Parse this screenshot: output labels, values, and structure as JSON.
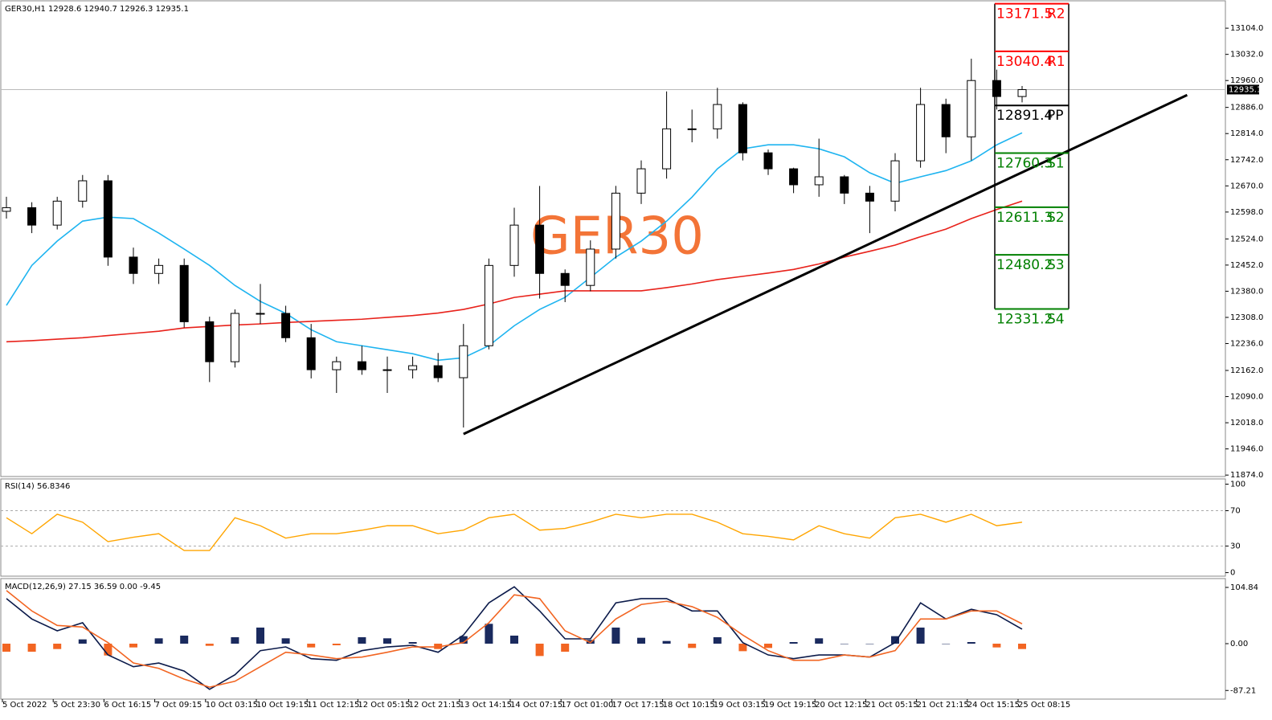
{
  "chart_data": [
    {
      "type": "candlestick",
      "title": "GER30,H1  12928.6 12940.7 12926.3 12935.1",
      "watermark": "GER30",
      "categories": [
        "5 Oct 2022",
        null,
        "5 Oct 23:30",
        null,
        "6 Oct 16:15",
        null,
        "7 Oct 09:15",
        null,
        "10 Oct 03:15",
        null,
        "10 Oct 19:15",
        null,
        "11 Oct 12:15",
        null,
        "12 Oct 05:15",
        null,
        "12 Oct 21:15",
        null,
        "13 Oct 14:15",
        null,
        "14 Oct 07:15",
        null,
        "17 Oct 01:00",
        null,
        "17 Oct 17:15",
        null,
        "18 Oct 10:15",
        null,
        "19 Oct 03:15",
        null,
        "19 Oct 19:15",
        null,
        "20 Oct 12:15",
        null,
        "21 Oct 05:15",
        null,
        "21 Oct 21:15",
        null,
        "24 Oct 15:15",
        null,
        "25 Oct 08:15"
      ],
      "open": [
        12600,
        12610,
        12562,
        12628,
        12684,
        12474,
        12429,
        12451,
        12296,
        12186,
        12319,
        12319,
        12252,
        12164,
        12186,
        12164,
        12164,
        12175,
        12142,
        12230,
        12451,
        12562,
        12429,
        12396,
        12496,
        12650,
        12717,
        12827,
        12827,
        12894,
        12761,
        12717,
        12673,
        12695,
        12650,
        12628,
        12739,
        12894,
        12805,
        12960,
        12916
      ],
      "high": [
        12640,
        12625,
        12640,
        12700,
        12700,
        12500,
        12470,
        12470,
        12310,
        12330,
        12400,
        12340,
        12290,
        12200,
        12230,
        12200,
        12200,
        12210,
        12290,
        12470,
        12610,
        12670,
        12440,
        12520,
        12670,
        12740,
        12930,
        12880,
        12940,
        12900,
        12770,
        12720,
        12800,
        12700,
        12670,
        12760,
        12940,
        12910,
        13020,
        12990,
        12945
      ],
      "low": [
        12580,
        12540,
        12550,
        12610,
        12450,
        12400,
        12400,
        12280,
        12130,
        12170,
        12290,
        12240,
        12140,
        12100,
        12150,
        12100,
        12140,
        12130,
        12005,
        12220,
        12420,
        12360,
        12350,
        12380,
        12470,
        12620,
        12690,
        12790,
        12800,
        12740,
        12700,
        12650,
        12640,
        12620,
        12540,
        12600,
        12720,
        12760,
        12740,
        12880,
        12900
      ],
      "close": [
        12610,
        12562,
        12628,
        12684,
        12474,
        12429,
        12451,
        12296,
        12186,
        12319,
        12319,
        12252,
        12164,
        12186,
        12164,
        12164,
        12175,
        12142,
        12230,
        12451,
        12562,
        12429,
        12396,
        12496,
        12650,
        12717,
        12827,
        12827,
        12894,
        12761,
        12717,
        12673,
        12695,
        12650,
        12628,
        12739,
        12894,
        12805,
        12960,
        12916,
        12935
      ],
      "overlays": [
        {
          "color": "#1eb4f0",
          "values": [
            12341,
            12451,
            12518,
            12573,
            12584,
            12580,
            12540,
            12496,
            12451,
            12396,
            12352,
            12319,
            12274,
            12241,
            12230,
            12219,
            12208,
            12190,
            12197,
            12230,
            12285,
            12330,
            12363,
            12418,
            12474,
            12518,
            12573,
            12639,
            12717,
            12772,
            12783,
            12783,
            12772,
            12750,
            12706,
            12677,
            12695,
            12712,
            12739,
            12783,
            12816
          ]
        },
        {
          "color": "#e8221b",
          "values": [
            12241,
            12244,
            12248,
            12252,
            12258,
            12264,
            12270,
            12279,
            12283,
            12287,
            12290,
            12294,
            12297,
            12300,
            12303,
            12308,
            12313,
            12320,
            12330,
            12345,
            12363,
            12372,
            12381,
            12381,
            12381,
            12381,
            12390,
            12400,
            12412,
            12421,
            12430,
            12440,
            12455,
            12474,
            12490,
            12507,
            12530,
            12551,
            12580,
            12605,
            12628
          ]
        }
      ],
      "trendline": {
        "x": [
          18,
          46.5
        ],
        "y": [
          11987,
          12920
        ],
        "color": "#000000"
      },
      "pivots": [
        {
          "label": "R2",
          "value": 13171.5,
          "color": "#ff0000"
        },
        {
          "label": "R1",
          "value": 13040.4,
          "color": "#ff0000"
        },
        {
          "label": "PP",
          "value": 12891.4,
          "color": "#000000"
        },
        {
          "label": "S1",
          "value": 12760.3,
          "color": "#008000"
        },
        {
          "label": "S2",
          "value": 12611.3,
          "color": "#008000"
        },
        {
          "label": "S3",
          "value": 12480.2,
          "color": "#008000"
        },
        {
          "label": "S4",
          "value": 12331.2,
          "color": "#008000"
        }
      ],
      "last_price": 12935.1,
      "ylim": [
        11870,
        13175
      ],
      "yticks": [
        {
          "value": 13104,
          "label": "13104.0"
        },
        {
          "value": 13032,
          "label": "13032.0"
        },
        {
          "value": 12960,
          "label": "12960.0"
        },
        {
          "value": 12886,
          "label": "12886.0"
        },
        {
          "value": 12814,
          "label": "12814.0"
        },
        {
          "value": 12742,
          "label": "12742.0"
        },
        {
          "value": 12670,
          "label": "12670.0"
        },
        {
          "value": 12598,
          "label": "12598.0"
        },
        {
          "value": 12524,
          "label": "12524.0"
        },
        {
          "value": 12452,
          "label": "12452.0"
        },
        {
          "value": 12380,
          "label": "12380.0"
        },
        {
          "value": 12308,
          "label": "12308.0"
        },
        {
          "value": 12236,
          "label": "12236.0"
        },
        {
          "value": 12162,
          "label": "12162.0"
        },
        {
          "value": 12090,
          "label": "12090.0"
        },
        {
          "value": 12018,
          "label": "12018.0"
        },
        {
          "value": 11946,
          "label": "11946.0"
        },
        {
          "value": 11874,
          "label": "11874.0"
        }
      ]
    },
    {
      "type": "line",
      "title": "RSI(14) 56.8346",
      "color": "#ffa500",
      "values": [
        62,
        44,
        66,
        57,
        35,
        40,
        44,
        25,
        25,
        62,
        53,
        39,
        44,
        44,
        48,
        53,
        53,
        44,
        48,
        62,
        66,
        48,
        50,
        57,
        66,
        62,
        66,
        66,
        57,
        44,
        41,
        37,
        53,
        44,
        39,
        62,
        66,
        57,
        66,
        53,
        57
      ],
      "levels": [
        30,
        70
      ],
      "ylim": [
        -4,
        105
      ],
      "yticks": [
        100,
        70,
        30,
        0
      ]
    },
    {
      "type": "macd",
      "title": "MACD(12,26,9) 27.15 36.59 0.00 -9.45",
      "histogram": [
        -15,
        -15,
        -10,
        8,
        -22,
        -7,
        10,
        15,
        -4,
        12,
        30,
        10,
        -7,
        -3,
        12,
        10,
        3,
        -10,
        14,
        37,
        15,
        -23,
        -15,
        7,
        30,
        11,
        5,
        -8,
        12,
        -14,
        -8,
        3,
        10,
        0,
        0,
        14,
        30,
        0,
        3,
        -7,
        -10
      ],
      "macd": [
        84,
        46,
        24,
        39,
        -21,
        -43,
        -36,
        -51,
        -85,
        -58,
        -13,
        -6,
        -28,
        -31,
        -13,
        -6,
        -3,
        -16,
        16,
        76,
        106,
        61,
        9,
        9,
        76,
        84,
        84,
        61,
        61,
        2,
        -21,
        -28,
        -21,
        -21,
        -25,
        2,
        76,
        46,
        64,
        54,
        27
      ],
      "signal": [
        99,
        61,
        34,
        31,
        2,
        -36,
        -46,
        -66,
        -81,
        -70,
        -43,
        -16,
        -21,
        -28,
        -25,
        -16,
        -6,
        -6,
        2,
        39,
        91,
        84,
        24,
        2,
        46,
        73,
        79,
        69,
        49,
        16,
        -13,
        -31,
        -31,
        -21,
        -25,
        -13,
        46,
        46,
        61,
        61,
        37
      ],
      "colors": {
        "positive": "#1a2a5e",
        "negative": "#f26522",
        "macd": "#0b1a4a",
        "signal": "#f26522"
      },
      "ylim": [
        -103.3,
        119.8
      ],
      "yticks": [
        104.84,
        {
          "value": 0,
          "label": "0.00"
        },
        -87.21
      ]
    }
  ]
}
